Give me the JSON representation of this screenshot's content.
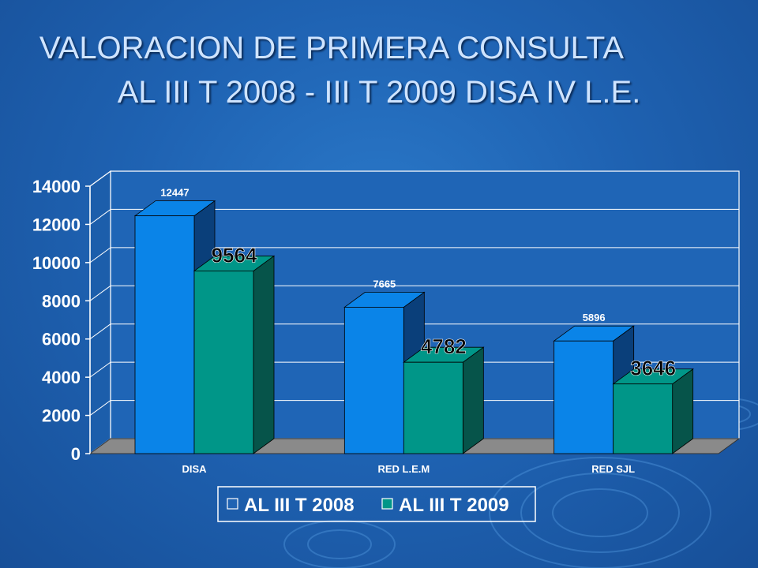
{
  "slide": {
    "title_line1": "VALORACION DE PRIMERA CONSULTA",
    "title_line2": "AL III T 2008 - III T 2009 DISA IV L.E."
  },
  "chart_data": {
    "type": "bar",
    "categories": [
      "DISA",
      "RED L.E.M",
      "RED SJL"
    ],
    "series": [
      {
        "name": "AL III T 2008",
        "values": [
          12447,
          7665,
          5896
        ],
        "color": "#0a84e8"
      },
      {
        "name": "AL III T 2009",
        "values": [
          9564,
          4782,
          3646
        ],
        "color": "#009688"
      }
    ],
    "ylim": [
      0,
      14000
    ],
    "yticks": [
      0,
      2000,
      4000,
      6000,
      8000,
      10000,
      12000,
      14000
    ],
    "grid": true,
    "legend_position": "bottom",
    "three_d": true
  }
}
